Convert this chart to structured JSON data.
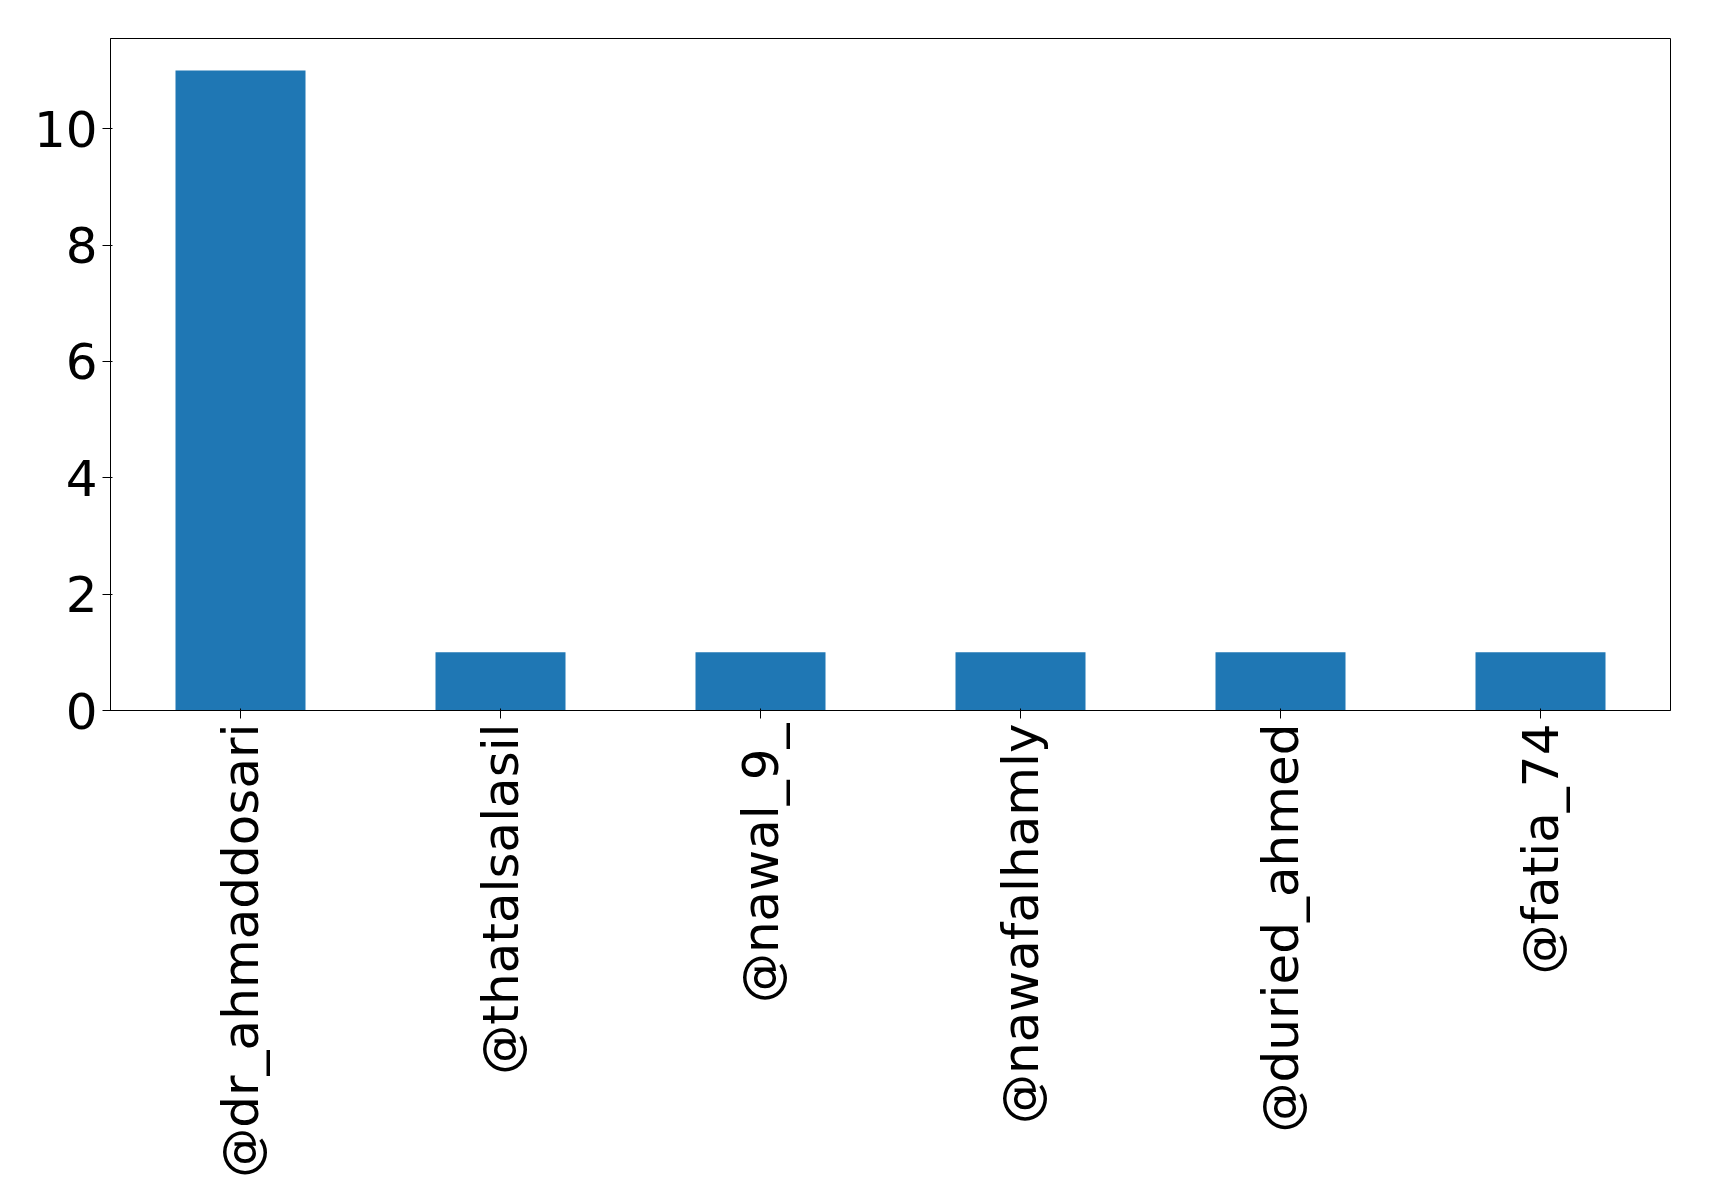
{
  "chart_data": {
    "type": "bar",
    "categories": [
      "@dr_ahmaddosari",
      "@thatalsalasil",
      "@nawal_9_",
      "@nawafalhamly",
      "@duried_ahmed",
      "@fatia_74"
    ],
    "values": [
      11,
      1,
      1,
      1,
      1,
      1
    ],
    "color": "#1f77b4",
    "ylim": [
      0,
      11.55
    ],
    "yticks": [
      0,
      2,
      4,
      6,
      8,
      10
    ],
    "grid": false
  }
}
